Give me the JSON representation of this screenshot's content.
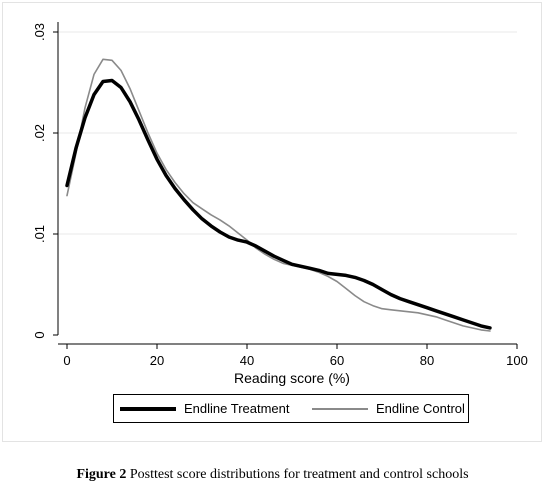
{
  "chart_data": {
    "type": "line",
    "title": "",
    "xlabel": "Reading score (%)",
    "ylabel": "",
    "xlim": [
      0,
      100
    ],
    "ylim": [
      0,
      0.03
    ],
    "xticks": [
      0,
      20,
      40,
      60,
      80,
      100
    ],
    "xtick_labels": [
      "0",
      "20",
      "40",
      "60",
      "80",
      "100"
    ],
    "yticks": [
      0,
      0.01,
      0.02,
      0.03
    ],
    "ytick_labels": [
      "0",
      ".01",
      ".02",
      ".03"
    ],
    "grid": "horizontal",
    "legend_position": "bottom",
    "series": [
      {
        "name": "Endline Treatment",
        "color": "#000000",
        "style": "thick",
        "x": [
          0,
          2,
          4,
          6,
          8,
          10,
          12,
          14,
          16,
          18,
          20,
          22,
          24,
          26,
          28,
          30,
          32,
          34,
          36,
          38,
          40,
          42,
          44,
          46,
          48,
          50,
          52,
          54,
          56,
          58,
          60,
          62,
          64,
          66,
          68,
          70,
          72,
          74,
          76,
          78,
          80,
          82,
          84,
          86,
          88,
          90,
          92,
          94
        ],
        "y": [
          0.0148,
          0.0185,
          0.0215,
          0.0238,
          0.0251,
          0.0252,
          0.0245,
          0.0231,
          0.0213,
          0.0193,
          0.0174,
          0.0158,
          0.0145,
          0.0134,
          0.0124,
          0.0115,
          0.0108,
          0.0102,
          0.0097,
          0.0094,
          0.0092,
          0.0088,
          0.0083,
          0.0078,
          0.0074,
          0.007,
          0.0068,
          0.0066,
          0.0064,
          0.0061,
          0.006,
          0.0059,
          0.0057,
          0.0054,
          0.005,
          0.0045,
          0.004,
          0.0036,
          0.0033,
          0.003,
          0.0027,
          0.0024,
          0.0021,
          0.0018,
          0.0015,
          0.0012,
          0.0009,
          0.0007
        ]
      },
      {
        "name": "Endline Control",
        "color": "#8a8a8a",
        "style": "thin",
        "x": [
          0,
          2,
          4,
          6,
          8,
          10,
          12,
          14,
          16,
          18,
          20,
          22,
          24,
          26,
          28,
          30,
          32,
          34,
          36,
          38,
          40,
          42,
          44,
          46,
          48,
          50,
          52,
          54,
          56,
          58,
          60,
          62,
          64,
          66,
          68,
          70,
          72,
          74,
          76,
          78,
          80,
          82,
          84,
          86,
          88,
          90,
          92,
          94
        ],
        "y": [
          0.0138,
          0.018,
          0.0225,
          0.0258,
          0.0273,
          0.0272,
          0.0262,
          0.0244,
          0.0222,
          0.02,
          0.018,
          0.0164,
          0.0151,
          0.014,
          0.0131,
          0.0125,
          0.0119,
          0.0114,
          0.0108,
          0.0101,
          0.0094,
          0.0086,
          0.008,
          0.0075,
          0.0071,
          0.0069,
          0.0067,
          0.0065,
          0.0062,
          0.0058,
          0.0053,
          0.0046,
          0.0039,
          0.0033,
          0.0029,
          0.0026,
          0.0025,
          0.0024,
          0.0023,
          0.0022,
          0.002,
          0.0018,
          0.0015,
          0.0012,
          0.0009,
          0.0007,
          0.0005,
          0.0004
        ]
      }
    ]
  },
  "caption": {
    "label": "Figure 2",
    "text": " Posttest score distributions for treatment and control schools"
  }
}
